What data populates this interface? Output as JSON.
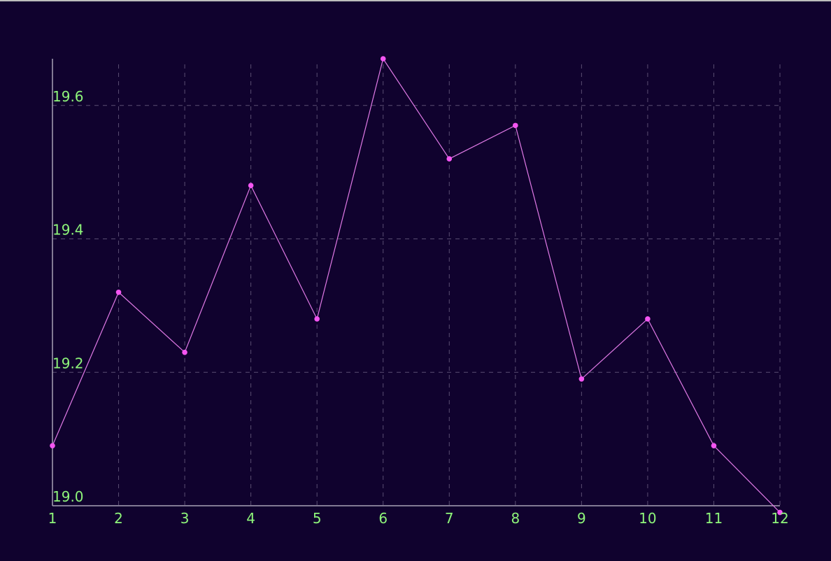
{
  "colors": {
    "background": "#10022e",
    "line": "#e07ae6",
    "point": "#f455f2",
    "tick_labels": "#8ef57a",
    "grid": "#5a4e72",
    "axis": "#a7a2b5"
  },
  "chart_data": {
    "type": "line",
    "title": "",
    "xlabel": "",
    "ylabel": "",
    "x": [
      1,
      2,
      3,
      4,
      5,
      6,
      7,
      8,
      9,
      10,
      11,
      12
    ],
    "x_tick_labels": [
      "1",
      "2",
      "3",
      "4",
      "5",
      "6",
      "7",
      "8",
      "9",
      "10",
      "11",
      "12"
    ],
    "series": [
      {
        "values": [
          19.09,
          19.32,
          19.23,
          19.48,
          19.28,
          19.67,
          19.52,
          19.57,
          19.19,
          19.28,
          19.09,
          18.99
        ]
      }
    ],
    "ylim": [
      19.0,
      19.67
    ],
    "y_ticks": [
      19.0,
      19.2,
      19.4,
      19.6
    ],
    "y_tick_labels": [
      "19.0",
      "19.2",
      "19.4",
      "19.6"
    ],
    "grid": true,
    "grid_style": "dashed",
    "legend": "none"
  }
}
